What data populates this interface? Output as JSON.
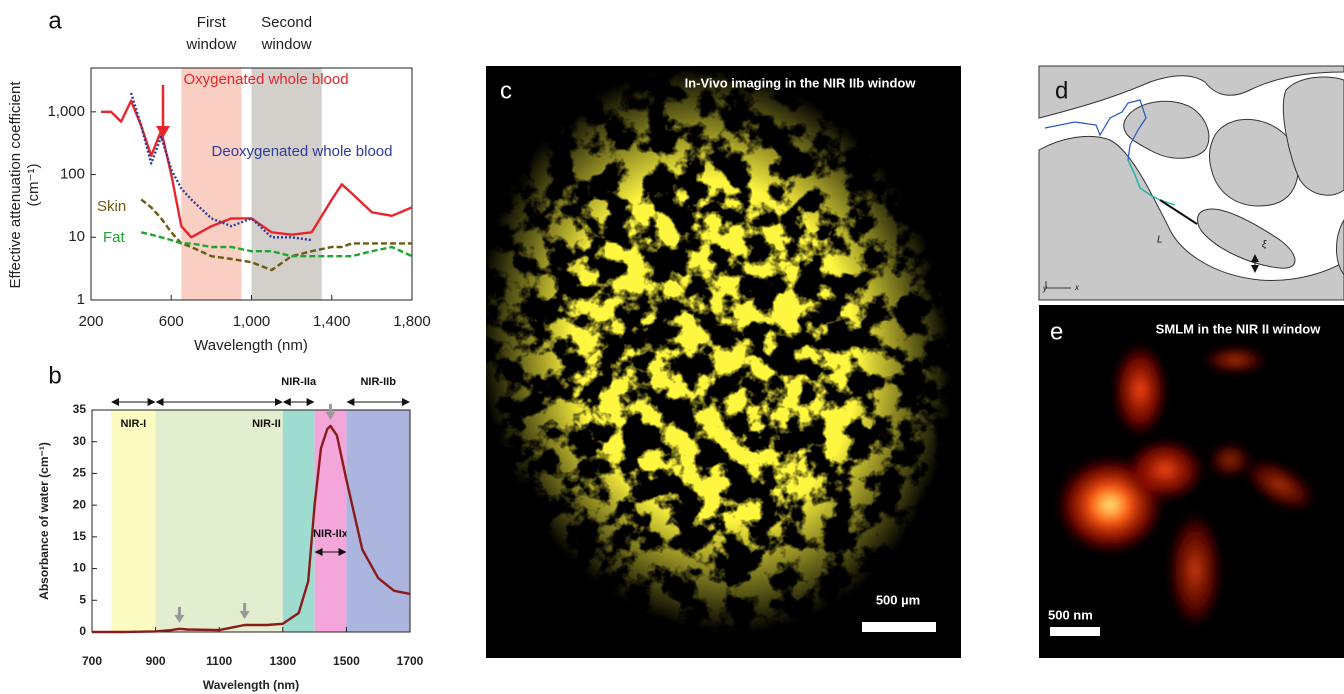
{
  "chart_data": [
    {
      "type": "line",
      "panel": "a",
      "log_y": true,
      "ylabel": "Effective attenuation coefficient (cm⁻¹)",
      "xlabel": "Wavelength (nm)",
      "x": [
        250,
        300,
        350,
        400,
        450,
        500,
        550,
        600,
        650,
        700,
        800,
        900,
        1000,
        1100,
        1200,
        1300,
        1400,
        1450,
        1500,
        1600,
        1700,
        1800
      ],
      "series": [
        {
          "name": "Oxygenated whole blood",
          "color": "#e8252a",
          "style": "solid",
          "values": [
            1000,
            1000,
            700,
            1500,
            600,
            200,
            500,
            100,
            15,
            10,
            15,
            20,
            20,
            12,
            11,
            12,
            40,
            70,
            50,
            25,
            22,
            30
          ]
        },
        {
          "name": "Deoxygenated whole blood",
          "color": "#2b3d9c",
          "style": "dotted",
          "values": [
            null,
            null,
            null,
            2000,
            600,
            150,
            400,
            120,
            60,
            40,
            20,
            15,
            20,
            10,
            10,
            9,
            null,
            null,
            null,
            null,
            null,
            null
          ]
        },
        {
          "name": "Skin",
          "color": "#6b5a12",
          "style": "dashed",
          "values": [
            null,
            null,
            null,
            null,
            40,
            30,
            20,
            12,
            8,
            7,
            5,
            4.5,
            4,
            3,
            5,
            6,
            7,
            7,
            8,
            8,
            8,
            8
          ]
        },
        {
          "name": "Fat",
          "color": "#1fa531",
          "style": "dashed",
          "values": [
            null,
            null,
            null,
            null,
            12,
            11,
            10,
            9,
            8,
            8,
            7,
            7,
            6,
            6,
            5,
            5,
            5,
            5,
            5,
            6,
            7,
            5
          ]
        }
      ],
      "regions": [
        {
          "label": "First window",
          "from": 650,
          "to": 950,
          "color": "#f9cfc4"
        },
        {
          "label": "Second window",
          "from": 1000,
          "to": 1350,
          "color": "#d3d0cc"
        }
      ],
      "xlim": [
        200,
        1800
      ],
      "xticks": [
        200,
        600,
        {
          "value": 1000,
          "label": "1,000"
        },
        {
          "value": 1400,
          "label": "1,400"
        },
        {
          "value": 1800,
          "label": "1,800"
        }
      ],
      "ylim": [
        1,
        5000
      ],
      "yticks": [
        1,
        10,
        100,
        {
          "value": 1000,
          "label": "1,000"
        }
      ]
    },
    {
      "type": "line",
      "panel": "b",
      "ylabel": "Absorbance of water (cm⁻¹)",
      "xlabel": "Wavelength (nm)",
      "x": [
        700,
        800,
        900,
        950,
        975,
        1000,
        1100,
        1150,
        1180,
        1250,
        1300,
        1350,
        1380,
        1400,
        1420,
        1440,
        1450,
        1470,
        1500,
        1550,
        1600,
        1650,
        1700
      ],
      "series": [
        {
          "color": "#8b1a1a",
          "style": "solid",
          "values": [
            0,
            0,
            0.1,
            0.3,
            0.5,
            0.4,
            0.3,
            0.8,
            1.1,
            1.1,
            1.3,
            3,
            8,
            20,
            29,
            32,
            32.5,
            31,
            24,
            13,
            8.5,
            6.5,
            6
          ]
        }
      ],
      "bands": [
        {
          "label": "NIR-I",
          "from": 760,
          "to": 900,
          "color": "#fbfbc2"
        },
        {
          "label": "NIR-II",
          "from": 900,
          "to": 1300,
          "color": "#e3edcf"
        },
        {
          "label": "NIR-IIa",
          "from": 1300,
          "to": 1400,
          "color": "#9fdcd0"
        },
        {
          "label": "NIR-IIx",
          "from": 1400,
          "to": 1500,
          "color": "#f4a6da"
        },
        {
          "label": "NIR-IIb",
          "from": 1500,
          "to": 1700,
          "color": "#acb5de"
        }
      ],
      "arrows_x": [
        975,
        1180,
        1450
      ],
      "xlim": [
        700,
        1700
      ],
      "xticks": [
        700,
        900,
        1100,
        1300,
        1500,
        1700
      ],
      "ylim": [
        0,
        35
      ],
      "yticks": [
        0,
        5,
        10,
        15,
        20,
        25,
        30,
        35
      ]
    }
  ],
  "images": [
    {
      "label": "c",
      "caption": "In-Vivo imaging in the NIR IIb window",
      "scale_bar": "500 µm"
    },
    {
      "label": "d",
      "symbols": [
        "L",
        "ξ",
        "y",
        "x"
      ]
    },
    {
      "label": "e",
      "caption": "SMLM in the NIR II window",
      "scale_bar": "500 nm"
    }
  ]
}
